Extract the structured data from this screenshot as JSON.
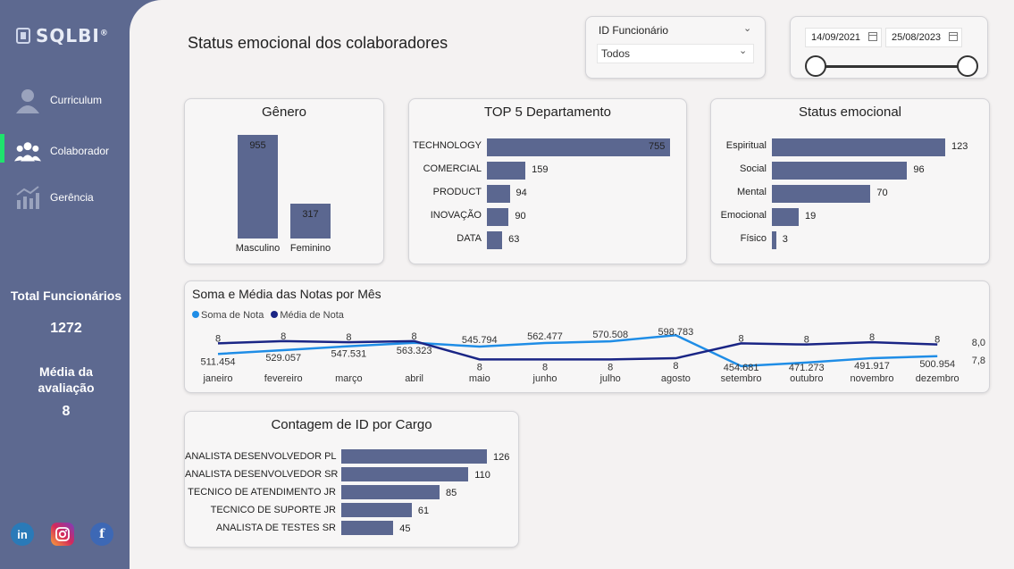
{
  "sidebar": {
    "logo": "SQLBI",
    "logo_mark": "®",
    "nav": [
      {
        "label": "Curriculum",
        "icon": "person-icon"
      },
      {
        "label": "Colaborador",
        "icon": "team-icon"
      },
      {
        "label": "Gerência",
        "icon": "chart-icon"
      }
    ],
    "kpis": {
      "total_title": "Total Funcionários",
      "total_value": "1272",
      "media_title": "Média da avaliação",
      "media_value": "8"
    },
    "social": {
      "linkedin": "in",
      "instagram": "",
      "facebook": "f"
    }
  },
  "header": {
    "title": "Status emocional dos colaboradores",
    "id_slicer": {
      "label": "ID Funcionário",
      "value": "Todos"
    },
    "date_slicer": {
      "start": "14/09/2021",
      "end": "25/08/2023"
    }
  },
  "colors": {
    "bar": "#5b6790",
    "soma": "#1f8de6",
    "media": "#1a2585",
    "active": "#1fe36d"
  },
  "chart_data": [
    {
      "id": "genero",
      "type": "bar",
      "title": "Gênero",
      "categories": [
        "Masculino",
        "Feminino"
      ],
      "values": [
        955,
        317
      ]
    },
    {
      "id": "departamento",
      "type": "bar",
      "orientation": "horizontal",
      "title": "TOP 5 Departamento",
      "categories": [
        "TECHNOLOGY",
        "COMERCIAL",
        "PRODUCT",
        "INOVAÇÃO",
        "DATA"
      ],
      "values": [
        755,
        159,
        94,
        90,
        63
      ]
    },
    {
      "id": "status",
      "type": "bar",
      "orientation": "horizontal",
      "title": "Status emocional",
      "categories": [
        "Espiritual",
        "Social",
        "Mental",
        "Emocional",
        "Físico"
      ],
      "values": [
        123,
        96,
        70,
        19,
        3
      ]
    },
    {
      "id": "notas",
      "type": "line",
      "title": "Soma e Média das Notas por Mês",
      "categories": [
        "janeiro",
        "fevereiro",
        "março",
        "abril",
        "maio",
        "junho",
        "julho",
        "agosto",
        "setembro",
        "outubro",
        "novembro",
        "dezembro"
      ],
      "series": [
        {
          "name": "Soma de Nota",
          "values": [
            511454,
            529057,
            547531,
            563323,
            545794,
            562477,
            570508,
            598783,
            454681,
            471273,
            491917,
            500954
          ],
          "labels": [
            "511.454",
            "529.057",
            "547.531",
            "563.323",
            "545.794",
            "562.477",
            "570.508",
            "598.783",
            "454.681",
            "471.273",
            "491.917",
            "500.954"
          ]
        },
        {
          "name": "Média de Nota",
          "values": [
            8.0,
            8.02,
            8.01,
            8.02,
            7.86,
            7.86,
            7.86,
            7.87,
            8.0,
            7.99,
            8.01,
            7.99
          ],
          "labels": [
            "8",
            "8",
            "8",
            "8",
            "8",
            "8",
            "8",
            "8",
            "8",
            "8",
            "8",
            "8"
          ]
        }
      ],
      "right_axis_ticks": [
        "8,0",
        "7,8"
      ]
    },
    {
      "id": "cargo",
      "type": "bar",
      "orientation": "horizontal",
      "title": "Contagem de ID por Cargo",
      "categories": [
        "ANALISTA DESENVOLVEDOR PL",
        "ANALISTA DESENVOLVEDOR SR",
        "TECNICO DE ATENDIMENTO JR",
        "TECNICO DE SUPORTE JR",
        "ANALISTA DE TESTES SR"
      ],
      "values": [
        126,
        110,
        85,
        61,
        45
      ]
    }
  ]
}
